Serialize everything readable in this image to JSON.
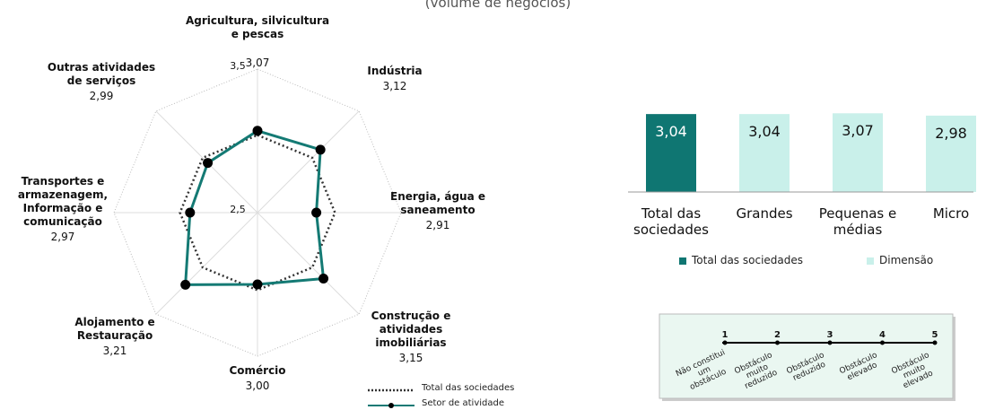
{
  "chart_data": [
    {
      "type": "radar",
      "subtitle": "(volume de negócios)",
      "categories": [
        "Agricultura, silvicultura\ne pescas",
        "Indústria",
        "Energia, água e\nsaneamento",
        "Construção e\natividades\nimobiliárias",
        "Comércio",
        "Alojamento e\nRestauração",
        "Transportes e\narmazenagem,\nInformação e\ncomunicação",
        "Outras atividades\nde serviços"
      ],
      "series": [
        {
          "name": "Total das sociedades",
          "color": "#333333",
          "line_style": "dotted",
          "values": [
            3.04,
            3.04,
            3.04,
            3.04,
            3.04,
            3.04,
            3.04,
            3.04
          ]
        },
        {
          "name": "Setor de atividade",
          "color": "#147a74",
          "marker_color": "#000000",
          "line_style": "solid",
          "values": [
            3.07,
            3.12,
            2.91,
            3.15,
            3.0,
            3.21,
            2.97,
            2.99
          ],
          "value_labels": [
            "3,07",
            "3,12",
            "2,91",
            "3,15",
            "3,00",
            "3,21",
            "2,97",
            "2,99"
          ]
        }
      ],
      "rlim": [
        2.5,
        3.5
      ],
      "rticks": [
        {
          "value": 2.5,
          "label": "2,5"
        },
        {
          "value": 3.5,
          "label": "3,5"
        }
      ]
    },
    {
      "type": "bar",
      "categories": [
        "Total das\nsociedades",
        "Grandes",
        "Pequenas e\nmédias",
        "Micro"
      ],
      "series": [
        {
          "name": "Total das sociedades",
          "color": "#0f7672",
          "text_color": "#ffffff",
          "values": [
            3.04,
            null,
            null,
            null
          ],
          "value_labels": [
            "3,04",
            null,
            null,
            null
          ]
        },
        {
          "name": "Dimensão",
          "color": "#c9f0ea",
          "text_color": "#111111",
          "values": [
            null,
            3.04,
            3.07,
            2.98
          ],
          "value_labels": [
            null,
            "3,04",
            "3,07",
            "2,98"
          ]
        }
      ],
      "ylim": [
        0,
        3.5
      ]
    }
  ],
  "scale": {
    "points": [
      {
        "value": 1,
        "label": "Não constitui\num obstáculo"
      },
      {
        "value": 2,
        "label": "Obstáculo\nmuito reduzido"
      },
      {
        "value": 3,
        "label": "Obstáculo\nreduzido"
      },
      {
        "value": 4,
        "label": "Obstáculo\nelevado"
      },
      {
        "value": 5,
        "label": "Obstáculo\nmuito elevado"
      }
    ]
  }
}
